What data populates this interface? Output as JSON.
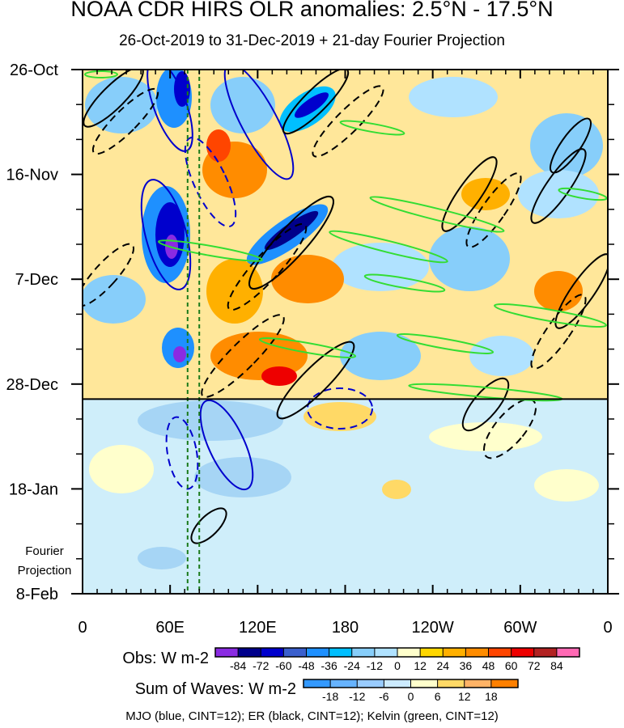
{
  "chart_data": {
    "type": "heatmap",
    "title": "NOAA CDR HIRS OLR anomalies: 2.5°N - 17.5°N",
    "subtitle": "26-Oct-2019 to 31-Dec-2019 + 21-day Fourier Projection",
    "x_axis": {
      "tick_labels": [
        "0",
        "60E",
        "120E",
        "180",
        "120W",
        "60W",
        "0"
      ],
      "tick_values_deg_east": [
        0,
        60,
        120,
        180,
        240,
        300,
        360
      ],
      "range": [
        0,
        360
      ]
    },
    "y_axis": {
      "tick_labels": [
        "26-Oct",
        "16-Nov",
        "7-Dec",
        "28-Dec",
        "18-Jan",
        "8-Feb"
      ],
      "tick_values_day": [
        0,
        21,
        42,
        63,
        84,
        105
      ],
      "range_day": [
        0,
        105
      ],
      "direction": "time increases downward"
    },
    "projection_label_lines": [
      "Fourier",
      "Projection"
    ],
    "observation_end_day": 66,
    "dashed_vertical_lines_deg_east": [
      72,
      80
    ],
    "obs_colorbar": {
      "label": "Obs: W m-2",
      "ticks": [
        "-84",
        "-72",
        "-60",
        "-48",
        "-36",
        "-24",
        "-12",
        "0",
        "12",
        "24",
        "36",
        "48",
        "60",
        "72",
        "84"
      ],
      "colors": [
        "#8a2be2",
        "#00008b",
        "#0000cd",
        "#3a5fcd",
        "#1e90ff",
        "#00bfff",
        "#87cefa",
        "#b0e2ff",
        "#ffffcc",
        "#ffd700",
        "#ffb000",
        "#ff8c00",
        "#ff4500",
        "#ee0000",
        "#b22222",
        "#ff69b4"
      ]
    },
    "waves_colorbar": {
      "label": "Sum of Waves: W m-2",
      "ticks": [
        "-18",
        "-12",
        "-6",
        "0",
        "6",
        "12",
        "18"
      ],
      "colors": [
        "#3399ff",
        "#66b3ff",
        "#99ccff",
        "#ccebff",
        "#ffffcc",
        "#ffd966",
        "#ffb366",
        "#ff8000"
      ]
    },
    "contour_legend": "MJO (blue, CINT=12); ER (black, CINT=12); Kelvin (green, CINT=12)",
    "contour_colors": {
      "MJO": "#0000cd",
      "ER": "#000000",
      "Kelvin": "#33dd33"
    }
  }
}
